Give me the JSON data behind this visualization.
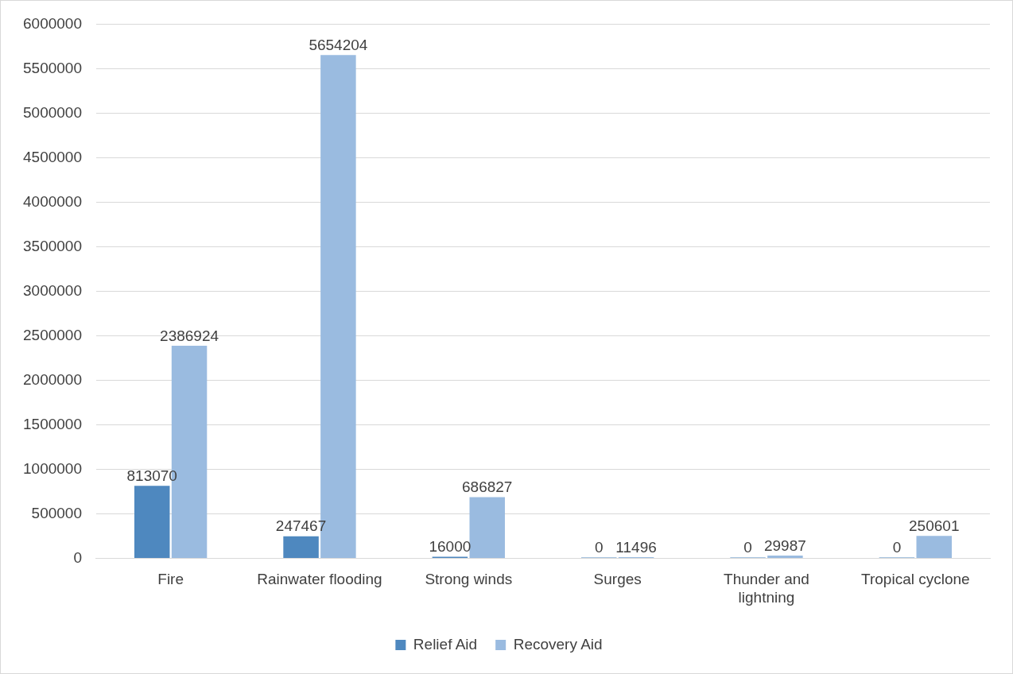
{
  "chart_data": {
    "type": "bar",
    "categories": [
      "Fire",
      "Rainwater flooding",
      "Strong winds",
      "Surges",
      "Thunder and lightning",
      "Tropical cyclone"
    ],
    "series": [
      {
        "name": "Relief Aid",
        "color": "#4e88bf",
        "values": [
          813070,
          247467,
          16000,
          0,
          0,
          0
        ]
      },
      {
        "name": "Recovery Aid",
        "color": "#9abbe0",
        "values": [
          2386924,
          5654204,
          686827,
          11496,
          29987,
          250601
        ]
      }
    ],
    "ylim": [
      0,
      6000000
    ],
    "yticks": [
      0,
      500000,
      1000000,
      1500000,
      2000000,
      2500000,
      3000000,
      3500000,
      4000000,
      4500000,
      5000000,
      5500000,
      6000000
    ],
    "grid": "y",
    "legend": "bottom",
    "data_labels": true
  }
}
